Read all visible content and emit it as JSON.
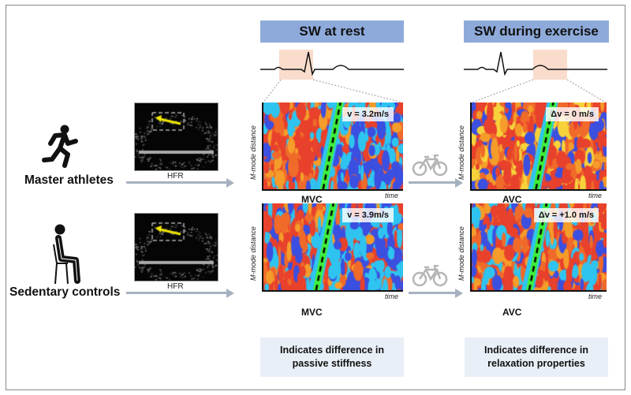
{
  "headers": {
    "rest": "SW at rest",
    "exercise": "SW during exercise"
  },
  "groups": [
    {
      "label": "Master athletes",
      "icon": "running-person-icon",
      "modality": "HFR",
      "rest": {
        "valve": "MVC",
        "value": "v = 3.2m/s"
      },
      "exercise": {
        "valve": "AVC",
        "value": "Δv = 0 m/s"
      }
    },
    {
      "label": "Sedentary controls",
      "icon": "sitting-person-icon",
      "modality": "HFR",
      "rest": {
        "valve": "MVC",
        "value": "v = 3.9m/s"
      },
      "exercise": {
        "valve": "AVC",
        "value": "Δv = +1.0 m/s"
      }
    }
  ],
  "axes": {
    "y": "M-mode distance",
    "x": "time"
  },
  "conclusions": {
    "rest": [
      "Indicates difference in",
      "passive stiffness"
    ],
    "exercise": [
      "Indicates difference in",
      "relaxation properties"
    ]
  },
  "colors": {
    "header": "#8eaadb",
    "highlight": "#f9dccb",
    "arrow": "#a6b1c0",
    "conclusion_bg": "#e9eff7"
  }
}
